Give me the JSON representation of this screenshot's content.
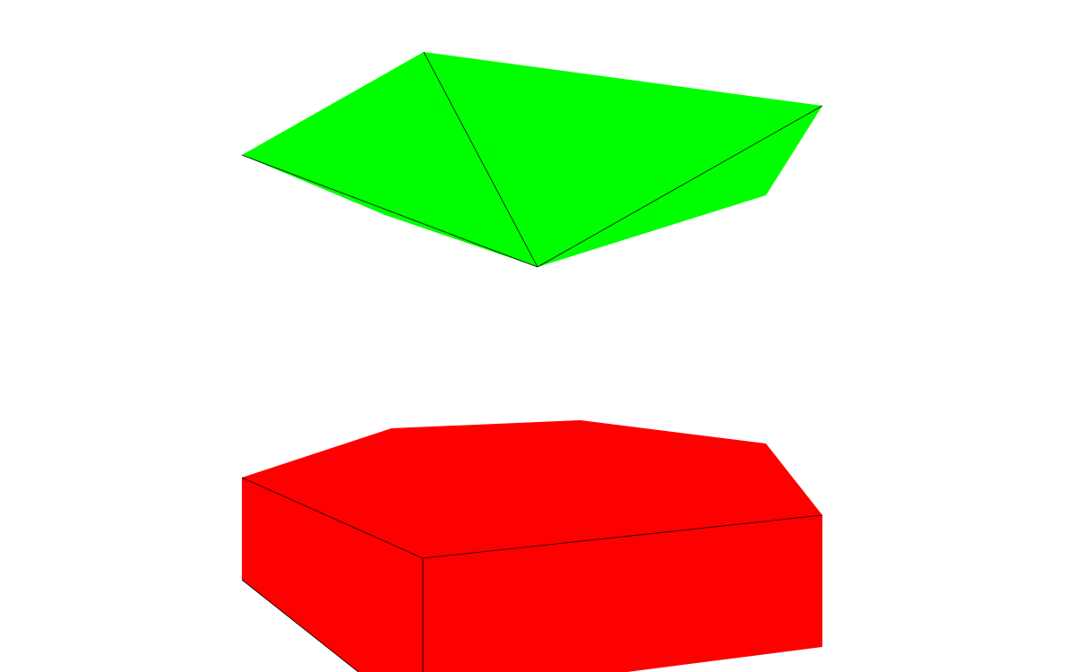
{
  "scene": {
    "background": "#ffffff",
    "objects": [
      {
        "name": "green-folded-polygon",
        "color": "#00ff00"
      },
      {
        "name": "red-hexagonal-prism",
        "color": "#ff0000"
      }
    ],
    "edge_color": "#000000"
  }
}
